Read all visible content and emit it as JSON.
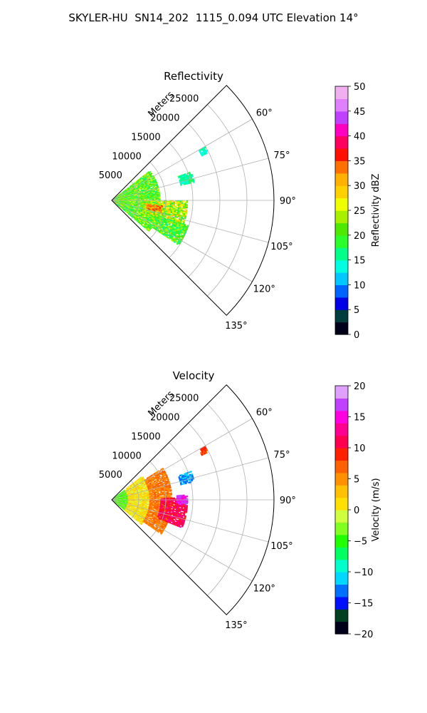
{
  "figure": {
    "title": "SKYLER-HU  SN14_202  1115_0.094 UTC Elevation 14°"
  },
  "chart_data": [
    {
      "type": "heatmap",
      "title": "Reflectivity",
      "projection": "polar sector (PPI)",
      "range_label": "Meters",
      "range_ticks": [
        5000,
        10000,
        15000,
        20000,
        25000
      ],
      "range_max": 30000,
      "azimuth_ticks": [
        "60°",
        "75°",
        "90°",
        "105°",
        "120°",
        "135°"
      ],
      "azimuth_tick_values": [
        60,
        75,
        90,
        105,
        120,
        135
      ],
      "azimuth_range": [
        45,
        135
      ],
      "grid": true,
      "colorbar": {
        "label": "Reflectivity dBZ",
        "min": 0,
        "max": 50,
        "ticks": [
          0,
          5,
          10,
          15,
          20,
          25,
          30,
          35,
          40,
          45,
          50
        ],
        "tick_labels": [
          "0",
          "5",
          "10",
          "15",
          "20",
          "25",
          "30",
          "35",
          "40",
          "45",
          "50"
        ],
        "colormap": "pyart_NWSRef"
      },
      "echo_regions": [
        {
          "az_min": 52,
          "az_max": 130,
          "r_min": 0,
          "r_max": 9000,
          "value_center": 21,
          "value_spread": 5
        },
        {
          "az_min": 90,
          "az_max": 112,
          "r_min": 6000,
          "r_max": 14000,
          "value_center": 24,
          "value_spread": 7
        },
        {
          "az_min": 96,
          "az_max": 104,
          "r_min": 6500,
          "r_max": 9500,
          "value_center": 33,
          "value_spread": 3
        },
        {
          "az_min": 108,
          "az_max": 124,
          "r_min": 9000,
          "r_max": 15000,
          "value_center": 20,
          "value_spread": 5
        },
        {
          "az_min": 70,
          "az_max": 78,
          "r_min": 13000,
          "r_max": 15500,
          "value_center": 16,
          "value_spread": 2
        },
        {
          "az_min": 60,
          "az_max": 64,
          "r_min": 18500,
          "r_max": 20000,
          "value_center": 15,
          "value_spread": 2
        }
      ]
    },
    {
      "type": "heatmap",
      "title": "Velocity",
      "projection": "polar sector (PPI)",
      "range_label": "Meters",
      "range_ticks": [
        5000,
        10000,
        15000,
        20000,
        25000
      ],
      "range_max": 30000,
      "azimuth_ticks": [
        "60°",
        "75°",
        "90°",
        "105°",
        "120°",
        "135°"
      ],
      "azimuth_tick_values": [
        60,
        75,
        90,
        105,
        120,
        135
      ],
      "azimuth_range": [
        45,
        135
      ],
      "grid": true,
      "colorbar": {
        "label": "Velocity (m/s)",
        "min": -20,
        "max": 20,
        "ticks": [
          -20,
          -15,
          -10,
          -5,
          0,
          5,
          10,
          15,
          20
        ],
        "tick_labels": [
          "−20",
          "−15",
          "−10",
          "−5",
          "0",
          "5",
          "10",
          "15",
          "20"
        ],
        "colormap": "pyart_BuDRd18"
      },
      "echo_regions": [
        {
          "az_min": 52,
          "az_max": 130,
          "r_min": 0,
          "r_max": 3000,
          "value_center": -4,
          "value_spread": 2
        },
        {
          "az_min": 52,
          "az_max": 130,
          "r_min": 3000,
          "r_max": 7000,
          "value_center": 1,
          "value_spread": 2
        },
        {
          "az_min": 58,
          "az_max": 125,
          "r_min": 7000,
          "r_max": 11000,
          "value_center": 6,
          "value_spread": 2
        },
        {
          "az_min": 88,
          "az_max": 112,
          "r_min": 9000,
          "r_max": 14000,
          "value_center": 11,
          "value_spread": 2
        },
        {
          "az_min": 86,
          "az_max": 94,
          "r_min": 12000,
          "r_max": 14000,
          "value_center": 16,
          "value_spread": 2
        },
        {
          "az_min": 70,
          "az_max": 78,
          "r_min": 13000,
          "r_max": 15500,
          "value_center": -12,
          "value_spread": 1
        },
        {
          "az_min": 60,
          "az_max": 64,
          "r_min": 18500,
          "r_max": 20000,
          "value_center": 8,
          "value_spread": 1
        }
      ]
    }
  ]
}
